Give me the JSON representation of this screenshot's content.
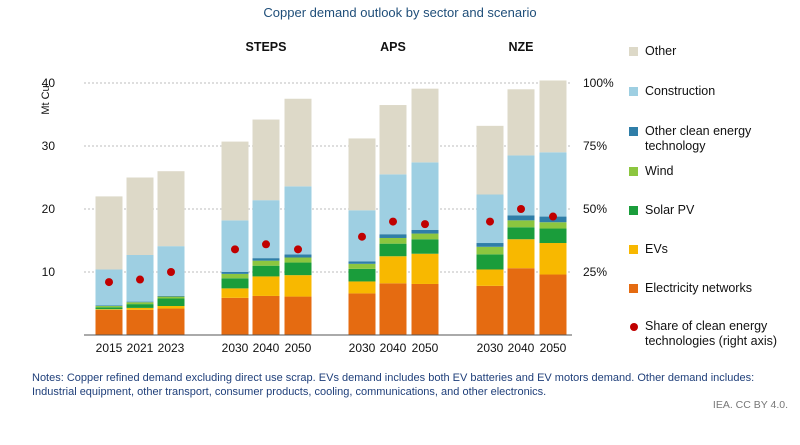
{
  "title": "Copper demand outlook by sector and scenario",
  "chart_data": {
    "type": "bar",
    "stacked": true,
    "title": "Copper demand outlook by sector and scenario",
    "ylabel": "Mt Cu",
    "ylim": [
      0,
      40
    ],
    "yticks": [
      "10",
      "20",
      "30",
      "40"
    ],
    "y2lim": [
      0,
      1
    ],
    "y2ticks": [
      "25%",
      "50%",
      "75%",
      "100%"
    ],
    "groups": [
      {
        "label": "",
        "categories": [
          "2015",
          "2021",
          "2023"
        ]
      },
      {
        "label": "STEPS",
        "categories": [
          "2030",
          "2040",
          "2050"
        ]
      },
      {
        "label": "APS",
        "categories": [
          "2030",
          "2040",
          "2050"
        ]
      },
      {
        "label": "NZE",
        "categories": [
          "2030",
          "2040",
          "2050"
        ]
      }
    ],
    "series": [
      {
        "name": "Electricity networks",
        "color": "#e56b11",
        "values": [
          4.0,
          4.0,
          4.2,
          5.9,
          6.2,
          6.1,
          6.6,
          8.2,
          8.1,
          7.8,
          10.6,
          9.6
        ]
      },
      {
        "name": "EVs",
        "color": "#f8b800",
        "values": [
          0.1,
          0.3,
          0.4,
          1.5,
          3.1,
          3.4,
          1.9,
          4.3,
          4.8,
          2.6,
          4.6,
          5.0
        ]
      },
      {
        "name": "Solar PV",
        "color": "#1a9d3b",
        "values": [
          0.3,
          0.6,
          1.2,
          1.6,
          1.7,
          2.0,
          2.0,
          2.0,
          2.3,
          2.4,
          1.9,
          2.3
        ]
      },
      {
        "name": "Wind",
        "color": "#8cc63f",
        "values": [
          0.2,
          0.3,
          0.3,
          0.7,
          0.8,
          0.8,
          0.8,
          0.9,
          0.9,
          1.2,
          1.1,
          1.0
        ]
      },
      {
        "name": "Other clean energy technology",
        "color": "#2f7ea8",
        "values": [
          0.1,
          0.1,
          0.1,
          0.3,
          0.4,
          0.5,
          0.4,
          0.6,
          0.6,
          0.6,
          0.8,
          0.9
        ]
      },
      {
        "name": "Construction",
        "color": "#9ecfe2",
        "values": [
          5.7,
          7.4,
          7.9,
          8.2,
          9.2,
          10.8,
          8.1,
          9.5,
          10.7,
          7.7,
          9.5,
          10.2
        ]
      },
      {
        "name": "Other",
        "color": "#ddd9c8",
        "values": [
          11.6,
          12.3,
          11.9,
          12.5,
          12.8,
          13.9,
          11.4,
          11.0,
          11.7,
          10.9,
          10.5,
          11.4
        ]
      }
    ],
    "share_series": {
      "name": "Share of clean energy technologies (right axis)",
      "color": "#c00000",
      "values": [
        0.21,
        0.22,
        0.25,
        0.34,
        0.36,
        0.34,
        0.39,
        0.45,
        0.44,
        0.45,
        0.5,
        0.47
      ]
    }
  },
  "legend": [
    {
      "label": "Other",
      "color": "#ddd9c8",
      "kind": "swatch"
    },
    {
      "label": "Construction",
      "color": "#9ecfe2",
      "kind": "swatch"
    },
    {
      "label": "Other clean energy technology",
      "color": "#2f7ea8",
      "kind": "swatch"
    },
    {
      "label": "Wind",
      "color": "#8cc63f",
      "kind": "swatch"
    },
    {
      "label": "Solar PV",
      "color": "#1a9d3b",
      "kind": "swatch"
    },
    {
      "label": "EVs",
      "color": "#f8b800",
      "kind": "swatch"
    },
    {
      "label": "Electricity networks",
      "color": "#e56b11",
      "kind": "swatch"
    },
    {
      "label": "Share of clean energy technologies (right axis)",
      "color": "#c00000",
      "kind": "dot"
    }
  ],
  "notes": "Notes: Copper refined demand excluding direct use scrap. EVs demand includes both EV batteries and EV motors demand. Other demand includes: Industrial equipment, other transport, consumer products, cooling, communications, and other electronics.",
  "credit": "IEA. CC BY 4.0."
}
